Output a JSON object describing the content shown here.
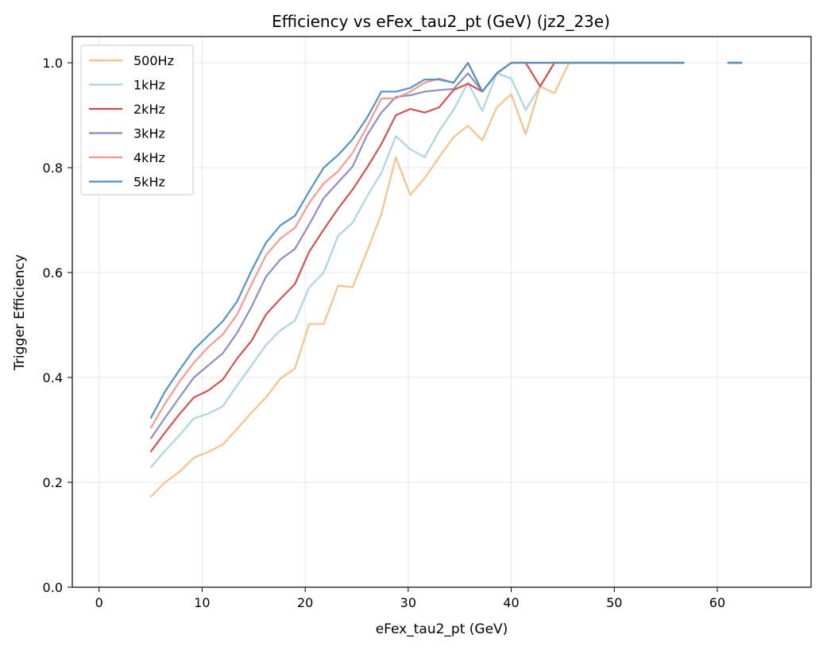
{
  "chart_data": {
    "type": "line",
    "title": "Efficiency vs eFex_tau2_pt (GeV) (jz2_23e)",
    "xlabel": "eFex_tau2_pt (GeV)",
    "ylabel": "Trigger Efficiency",
    "xlim": [
      -2.6,
      69.1
    ],
    "ylim": [
      0.0,
      1.05
    ],
    "xticks": [
      0,
      10,
      20,
      30,
      40,
      50,
      60
    ],
    "yticks": [
      0.0,
      0.2,
      0.4,
      0.6,
      0.8,
      1.0
    ],
    "xtick_labels": [
      "0",
      "10",
      "20",
      "30",
      "40",
      "50",
      "60"
    ],
    "ytick_labels": [
      "0.0",
      "0.2",
      "0.4",
      "0.6",
      "0.8",
      "1.0"
    ],
    "grid": true,
    "legend": "top-left",
    "x": [
      5.0,
      6.4,
      7.8,
      9.2,
      10.6,
      12.0,
      13.4,
      14.8,
      16.2,
      17.6,
      19.0,
      20.4,
      21.8,
      23.2,
      24.6,
      26.0,
      27.4,
      28.8,
      30.2,
      31.6,
      33.0,
      34.4,
      35.8,
      37.2,
      38.6,
      40.0,
      41.4,
      42.8,
      44.2,
      45.6,
      47.0,
      48.4,
      49.8,
      51.2,
      52.6,
      54.0,
      55.4,
      56.8,
      58.2,
      59.6,
      61.0,
      62.4,
      63.8
    ],
    "series": [
      {
        "name": "500Hz",
        "color": "#f5bf86",
        "values": [
          0.172,
          0.2,
          0.22,
          0.247,
          0.258,
          0.272,
          0.302,
          0.333,
          0.362,
          0.398,
          0.417,
          0.502,
          0.502,
          0.575,
          0.572,
          0.64,
          0.712,
          0.82,
          0.748,
          0.78,
          0.82,
          0.858,
          0.88,
          0.852,
          0.915,
          0.94,
          0.864,
          0.955,
          0.942,
          1.0,
          1.0,
          1.0,
          1.0,
          1.0,
          1.0,
          1.0,
          1.0,
          1.0,
          null,
          null,
          1.0,
          1.0,
          null
        ]
      },
      {
        "name": "1kHz",
        "color": "#a9d2e2",
        "values": [
          0.228,
          0.26,
          0.29,
          0.322,
          0.331,
          0.345,
          0.385,
          0.423,
          0.462,
          0.49,
          0.508,
          0.572,
          0.6,
          0.67,
          0.695,
          0.745,
          0.79,
          0.86,
          0.835,
          0.82,
          0.87,
          0.91,
          0.962,
          0.908,
          0.98,
          0.97,
          0.91,
          0.955,
          1.0,
          1.0,
          1.0,
          1.0,
          1.0,
          1.0,
          1.0,
          1.0,
          1.0,
          1.0,
          null,
          null,
          1.0,
          1.0,
          null
        ]
      },
      {
        "name": "2kHz",
        "color": "#cd4b4b",
        "values": [
          0.258,
          0.295,
          0.33,
          0.362,
          0.375,
          0.396,
          0.436,
          0.47,
          0.52,
          0.55,
          0.578,
          0.64,
          0.682,
          0.722,
          0.758,
          0.8,
          0.845,
          0.9,
          0.912,
          0.905,
          0.915,
          0.948,
          0.96,
          0.945,
          0.98,
          1.0,
          1.0,
          0.955,
          1.0,
          1.0,
          1.0,
          1.0,
          1.0,
          1.0,
          1.0,
          1.0,
          1.0,
          1.0,
          null,
          null,
          1.0,
          1.0,
          null
        ]
      },
      {
        "name": "3kHz",
        "color": "#8987bf",
        "values": [
          0.283,
          0.323,
          0.362,
          0.4,
          0.423,
          0.446,
          0.485,
          0.535,
          0.592,
          0.625,
          0.645,
          0.692,
          0.742,
          0.772,
          0.802,
          0.862,
          0.905,
          0.935,
          0.938,
          0.945,
          0.948,
          0.95,
          0.98,
          0.945,
          0.98,
          1.0,
          1.0,
          1.0,
          1.0,
          1.0,
          1.0,
          1.0,
          1.0,
          1.0,
          1.0,
          1.0,
          1.0,
          1.0,
          null,
          null,
          1.0,
          1.0,
          null
        ]
      },
      {
        "name": "4kHz",
        "color": "#f5958a",
        "values": [
          0.303,
          0.35,
          0.392,
          0.428,
          0.458,
          0.482,
          0.52,
          0.578,
          0.633,
          0.665,
          0.685,
          0.733,
          0.77,
          0.793,
          0.828,
          0.878,
          0.932,
          0.932,
          0.945,
          0.962,
          0.97,
          0.962,
          1.0,
          0.945,
          0.98,
          1.0,
          1.0,
          1.0,
          1.0,
          1.0,
          1.0,
          1.0,
          1.0,
          1.0,
          1.0,
          1.0,
          1.0,
          1.0,
          null,
          null,
          1.0,
          1.0,
          null
        ]
      },
      {
        "name": "5kHz",
        "color": "#4d8ebf",
        "values": [
          0.322,
          0.373,
          0.414,
          0.453,
          0.48,
          0.507,
          0.545,
          0.604,
          0.657,
          0.69,
          0.708,
          0.755,
          0.8,
          0.824,
          0.854,
          0.895,
          0.945,
          0.945,
          0.952,
          0.968,
          0.968,
          0.962,
          1.0,
          0.945,
          0.98,
          1.0,
          1.0,
          1.0,
          1.0,
          1.0,
          1.0,
          1.0,
          1.0,
          1.0,
          1.0,
          1.0,
          1.0,
          1.0,
          null,
          null,
          1.0,
          1.0,
          null
        ]
      }
    ]
  }
}
